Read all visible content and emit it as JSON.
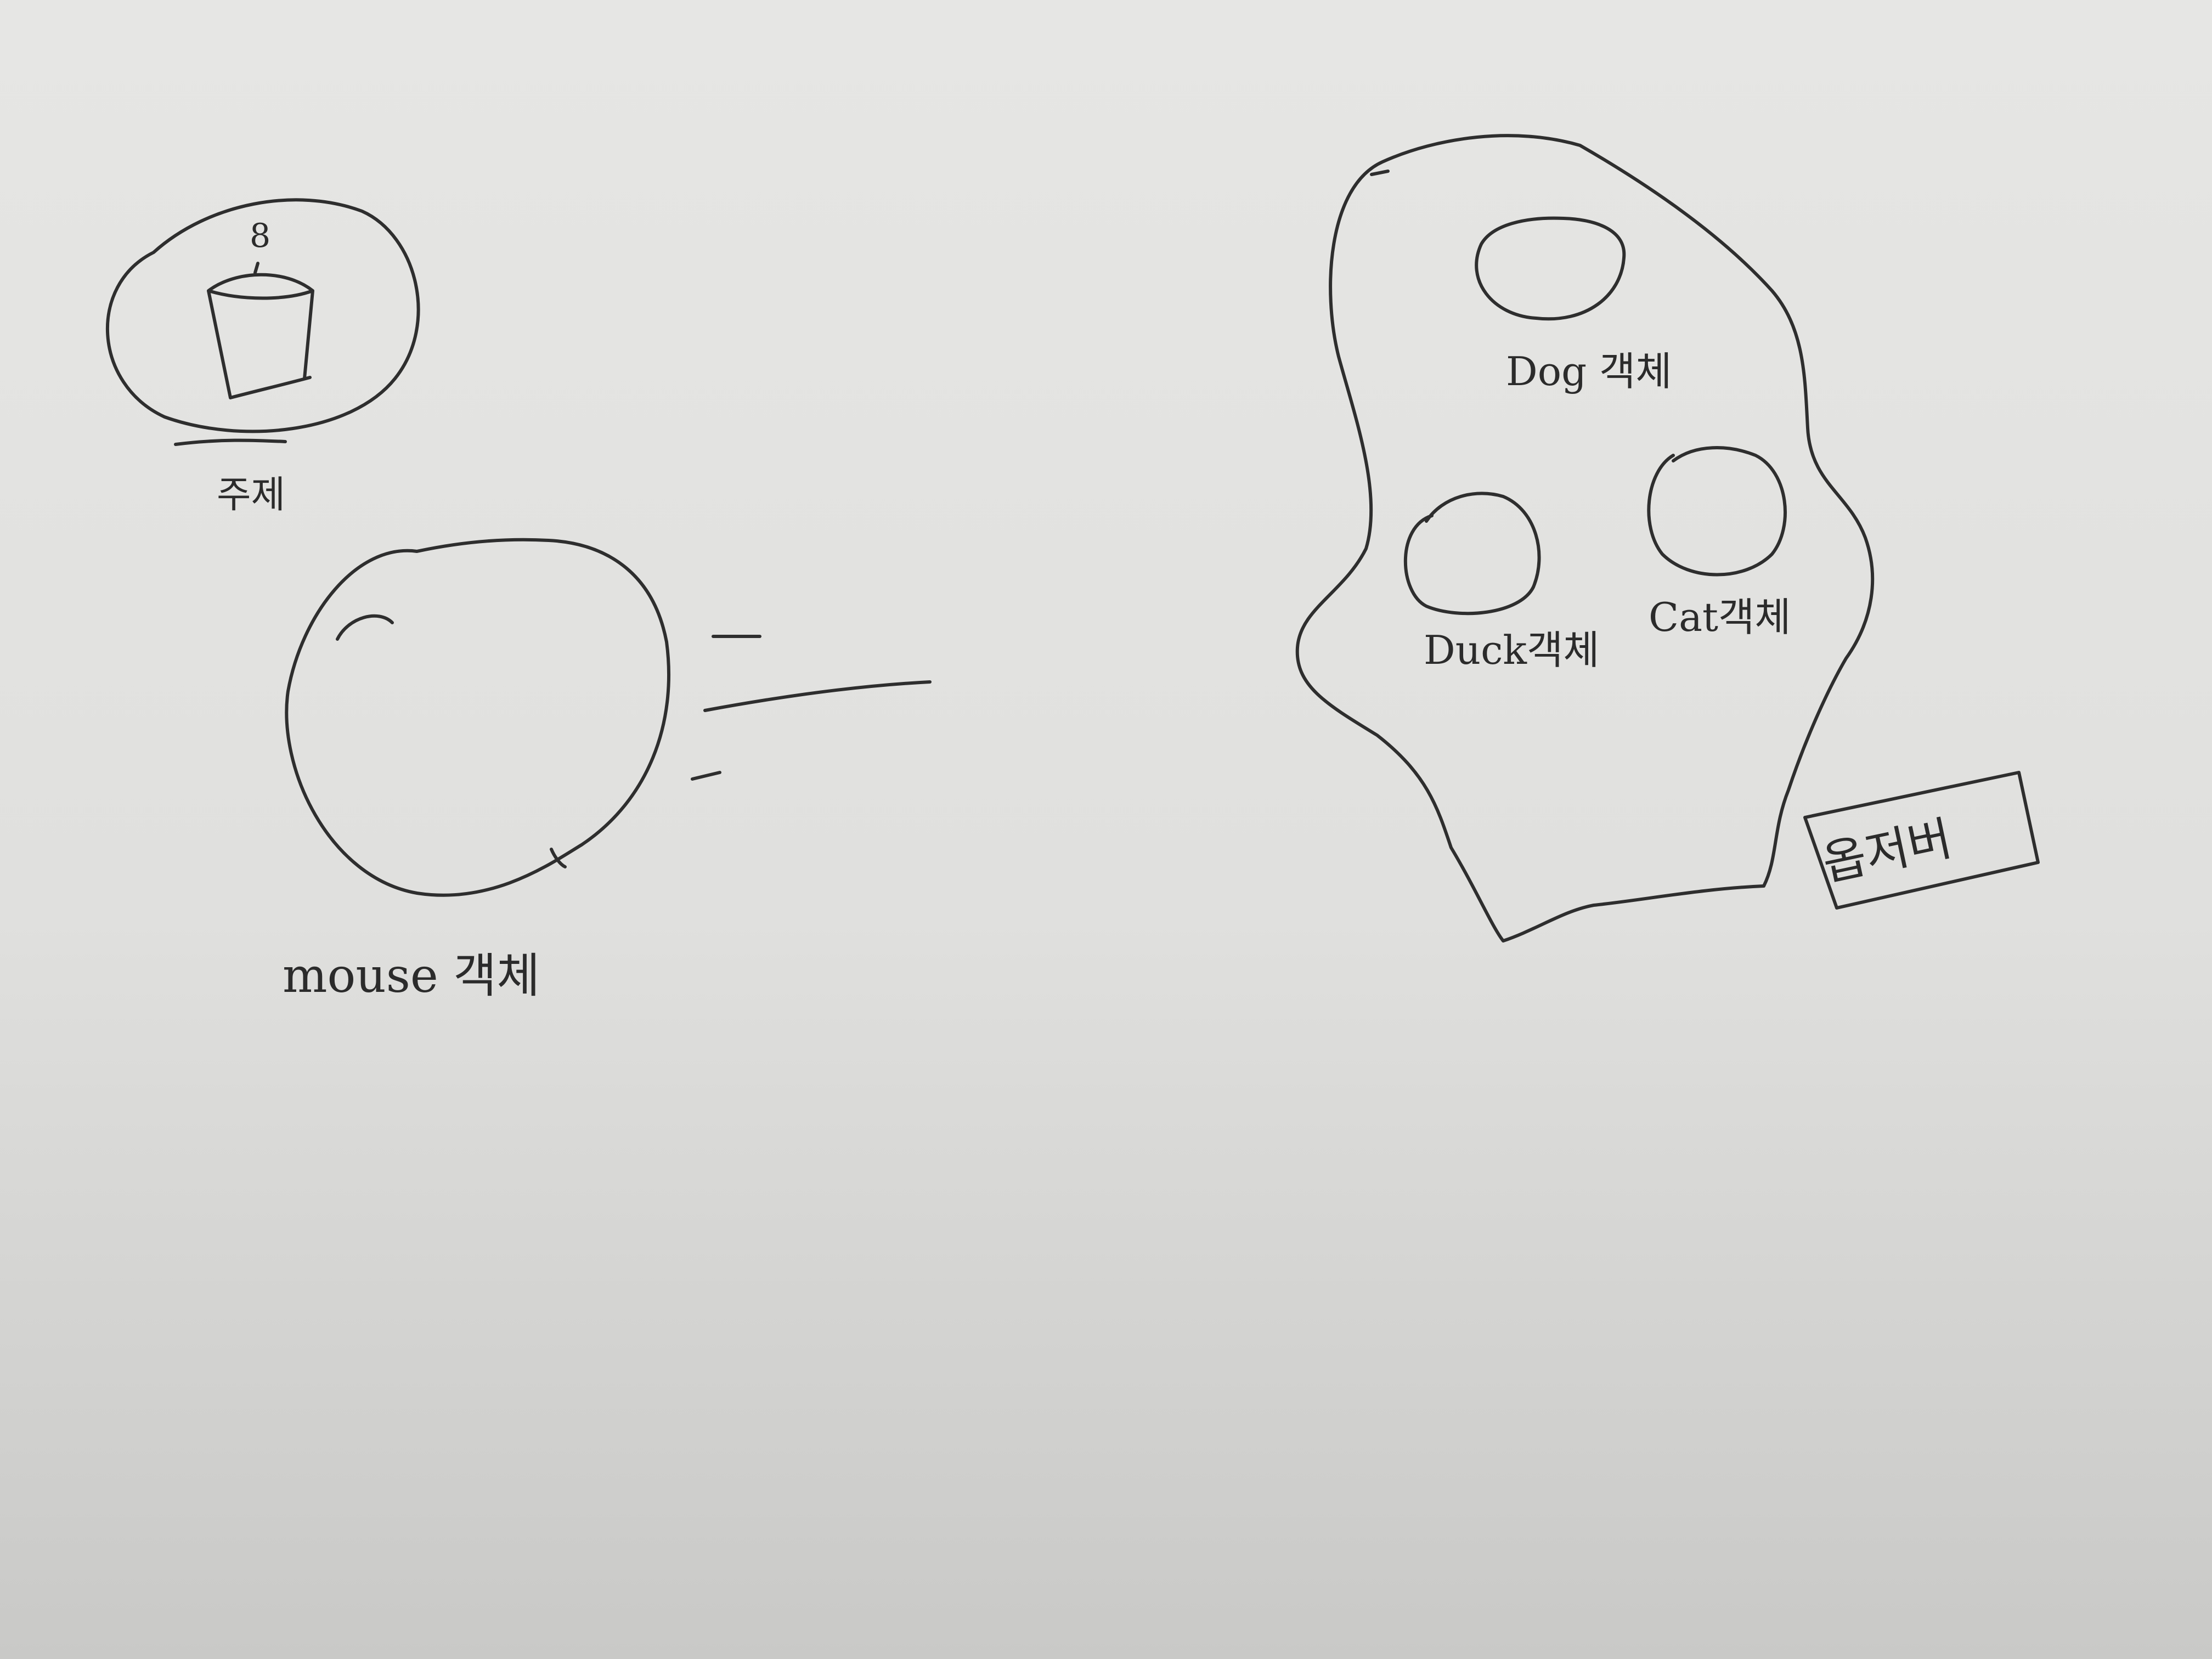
{
  "labels": {
    "subject": "주제",
    "subject_number": "8",
    "mouse": "mouse 객체",
    "dog": "Dog 객체",
    "duck": "Duck객체",
    "cat": "Cat객체",
    "observer": "옵저버"
  }
}
